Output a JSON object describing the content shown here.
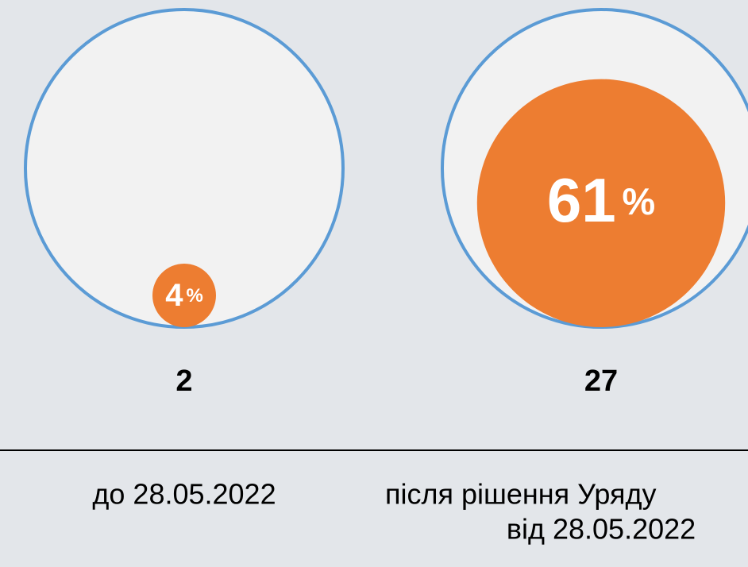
{
  "chart_data": {
    "type": "bubble",
    "categories": [
      [
        "до 28.05.2022"
      ],
      [
        "після рішення Уряду",
        "від 28.05.2022"
      ]
    ],
    "values": [
      4,
      61
    ],
    "unit": "%",
    "counts": [
      2,
      27
    ],
    "color": "#ed7d31",
    "outline_color": "#5b9bd5"
  }
}
